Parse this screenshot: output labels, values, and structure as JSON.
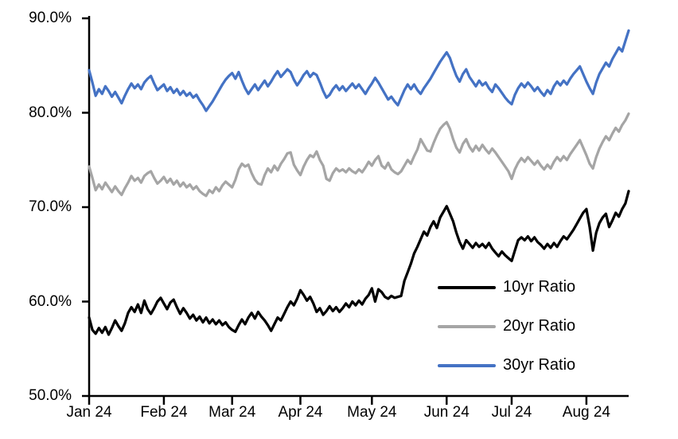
{
  "chart_data": {
    "type": "line",
    "title": "",
    "grid": false,
    "background": "#FFFFFF",
    "axis_color": "#000000",
    "y_axis": {
      "min": 50,
      "max": 90,
      "tick_values": [
        50,
        60,
        70,
        80,
        90
      ],
      "tick_labels": [
        "50.0%",
        "60.0%",
        "70.0%",
        "80.0%",
        "90.0%"
      ]
    },
    "x_axis": {
      "tick_labels": [
        "Jan 24",
        "Feb 24",
        "Mar 24",
        "Apr 24",
        "May 24",
        "Jun 24",
        "Jul 24",
        "Aug 24"
      ],
      "tick_indices": [
        0,
        23,
        44,
        65,
        87,
        110,
        130,
        153
      ],
      "point_count": 167
    },
    "legend": {
      "position": "inside-lower-right",
      "entries": [
        "10yr Ratio",
        "20yr Ratio",
        "30yr Ratio"
      ]
    },
    "series": [
      {
        "name": "10yr Ratio",
        "color": "#000000",
        "values": [
          58.3,
          57.0,
          56.6,
          57.2,
          56.7,
          57.3,
          56.5,
          57.2,
          58.0,
          57.4,
          56.9,
          57.7,
          58.8,
          59.4,
          58.9,
          59.7,
          58.8,
          60.1,
          59.2,
          58.7,
          59.3,
          60.0,
          60.4,
          59.8,
          59.2,
          59.9,
          60.2,
          59.4,
          58.7,
          59.3,
          58.8,
          58.2,
          58.6,
          58.0,
          58.4,
          57.8,
          58.3,
          57.7,
          58.1,
          57.6,
          58.0,
          57.5,
          57.8,
          57.3,
          57.0,
          56.8,
          57.5,
          58.1,
          57.6,
          58.3,
          58.8,
          58.2,
          58.9,
          58.4,
          58.0,
          57.5,
          56.9,
          57.6,
          58.3,
          58.0,
          58.7,
          59.4,
          60.0,
          59.6,
          60.3,
          61.2,
          60.7,
          60.1,
          60.5,
          59.8,
          58.9,
          59.3,
          58.6,
          59.0,
          59.5,
          59.0,
          59.4,
          58.9,
          59.3,
          59.8,
          59.4,
          60.0,
          59.6,
          60.1,
          59.7,
          60.3,
          60.7,
          61.4,
          60.0,
          61.3,
          61.0,
          60.5,
          60.3,
          60.6,
          60.4,
          60.5,
          60.6,
          62.2,
          63.1,
          64.0,
          65.1,
          65.8,
          66.6,
          67.4,
          67.0,
          67.9,
          68.5,
          67.8,
          68.9,
          69.5,
          70.1,
          69.3,
          68.5,
          67.3,
          66.3,
          65.6,
          66.5,
          66.1,
          65.7,
          66.2,
          65.8,
          66.1,
          65.7,
          66.2,
          65.6,
          65.2,
          64.8,
          65.3,
          64.9,
          64.6,
          64.3,
          65.4,
          66.5,
          66.8,
          66.5,
          66.9,
          66.4,
          66.8,
          66.3,
          66.0,
          65.6,
          66.1,
          65.7,
          66.2,
          65.8,
          66.4,
          66.9,
          66.6,
          67.1,
          67.6,
          68.2,
          68.8,
          69.4,
          69.8,
          67.9,
          65.4,
          67.3,
          68.3,
          68.9,
          69.3,
          67.9,
          68.6,
          69.4,
          69.0,
          69.8,
          70.4,
          71.7
        ]
      },
      {
        "name": "20yr Ratio",
        "color": "#A5A5A5",
        "values": [
          74.3,
          73.1,
          71.8,
          72.4,
          71.9,
          72.6,
          72.1,
          71.6,
          72.2,
          71.7,
          71.3,
          72.0,
          72.6,
          73.3,
          72.8,
          73.1,
          72.6,
          73.3,
          73.6,
          73.8,
          73.1,
          72.5,
          72.8,
          73.2,
          72.6,
          73.0,
          72.4,
          72.8,
          72.2,
          72.6,
          72.1,
          72.4,
          71.9,
          72.2,
          71.7,
          71.4,
          71.2,
          71.8,
          71.5,
          72.1,
          71.7,
          72.3,
          72.7,
          72.4,
          72.1,
          72.9,
          74.0,
          74.6,
          74.3,
          74.5,
          73.6,
          72.9,
          72.5,
          72.4,
          73.4,
          74.1,
          73.7,
          74.4,
          73.9,
          74.6,
          75.1,
          75.7,
          75.8,
          74.5,
          73.9,
          73.4,
          74.3,
          75.0,
          75.5,
          75.3,
          75.9,
          75.0,
          74.4,
          73.0,
          72.8,
          73.6,
          74.1,
          73.8,
          74.0,
          73.7,
          74.1,
          73.8,
          73.6,
          74.0,
          73.7,
          74.2,
          74.8,
          74.4,
          75.0,
          75.4,
          74.4,
          74.1,
          74.7,
          74.0,
          73.7,
          73.5,
          73.8,
          74.4,
          75.0,
          74.6,
          75.4,
          76.1,
          77.2,
          76.6,
          76.0,
          75.9,
          76.8,
          77.6,
          78.3,
          78.7,
          79.0,
          78.3,
          77.2,
          76.3,
          75.8,
          76.7,
          77.2,
          76.4,
          75.9,
          76.5,
          76.0,
          76.6,
          76.1,
          75.7,
          76.2,
          75.8,
          75.3,
          74.8,
          74.3,
          73.8,
          73.0,
          74.0,
          74.7,
          75.2,
          74.8,
          75.3,
          74.9,
          74.5,
          74.9,
          74.4,
          74.0,
          74.5,
          74.1,
          74.8,
          75.3,
          74.9,
          75.4,
          75.0,
          75.6,
          76.1,
          76.6,
          77.1,
          76.3,
          75.5,
          74.6,
          74.1,
          75.3,
          76.2,
          76.9,
          77.5,
          77.1,
          77.8,
          78.4,
          78.0,
          78.7,
          79.2,
          79.9
        ]
      },
      {
        "name": "30yr Ratio",
        "color": "#4472C4",
        "values": [
          84.5,
          83.2,
          81.8,
          82.5,
          82.0,
          82.8,
          82.3,
          81.7,
          82.2,
          81.6,
          81.0,
          81.8,
          82.5,
          83.1,
          82.6,
          83.0,
          82.5,
          83.2,
          83.6,
          83.9,
          83.1,
          82.4,
          82.7,
          83.0,
          82.3,
          82.7,
          82.1,
          82.5,
          81.9,
          82.3,
          81.8,
          82.1,
          81.6,
          81.9,
          81.3,
          80.8,
          80.2,
          80.7,
          81.2,
          81.8,
          82.4,
          83.0,
          83.5,
          83.9,
          84.2,
          83.6,
          84.3,
          83.4,
          82.6,
          82.0,
          82.5,
          83.0,
          82.4,
          82.9,
          83.4,
          82.8,
          83.3,
          83.9,
          84.4,
          83.8,
          84.2,
          84.6,
          84.3,
          83.5,
          82.9,
          83.4,
          84.0,
          84.4,
          83.8,
          84.2,
          84.0,
          83.2,
          82.3,
          81.6,
          81.9,
          82.5,
          82.9,
          82.4,
          82.8,
          82.3,
          82.7,
          83.1,
          82.6,
          83.0,
          82.5,
          82.0,
          82.6,
          83.1,
          83.7,
          83.2,
          82.6,
          82.0,
          81.4,
          81.7,
          81.2,
          80.8,
          81.6,
          82.4,
          83.0,
          82.5,
          83.0,
          82.4,
          82.0,
          82.6,
          83.1,
          83.6,
          84.2,
          84.8,
          85.4,
          85.9,
          86.4,
          85.8,
          84.8,
          83.9,
          83.3,
          84.1,
          84.6,
          83.8,
          83.3,
          82.8,
          83.4,
          82.9,
          83.2,
          82.6,
          82.2,
          83.0,
          82.6,
          82.1,
          81.6,
          81.2,
          80.9,
          81.9,
          82.6,
          83.1,
          82.7,
          83.2,
          82.8,
          82.3,
          82.7,
          82.2,
          81.8,
          82.4,
          82.0,
          82.8,
          83.3,
          82.9,
          83.4,
          83.0,
          83.6,
          84.1,
          84.5,
          84.9,
          84.1,
          83.3,
          82.6,
          82.0,
          83.2,
          84.1,
          84.7,
          85.3,
          84.9,
          85.7,
          86.3,
          86.9,
          86.5,
          87.6,
          88.7
        ]
      }
    ]
  }
}
